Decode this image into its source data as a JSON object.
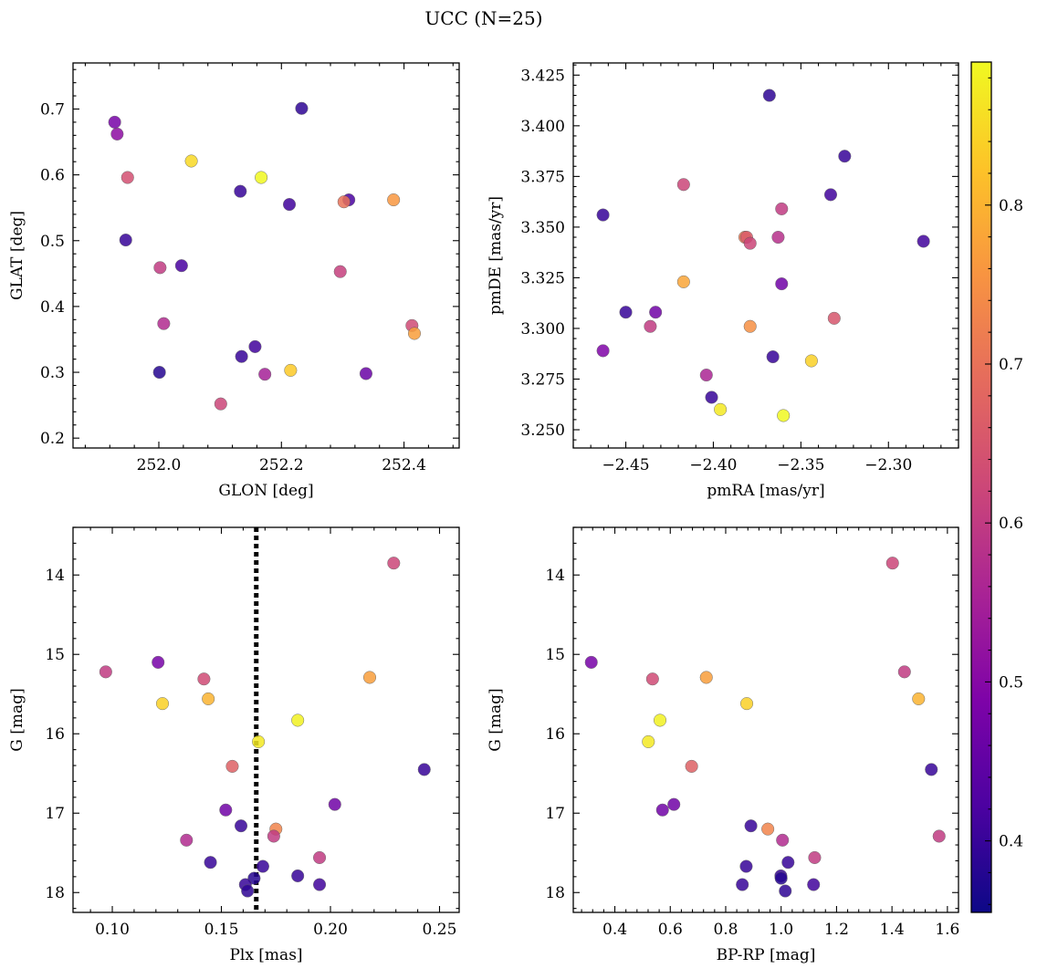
{
  "title": "UCC (N=25)",
  "colorbar": {
    "range": [
      0.355,
      0.89
    ],
    "ticks": [
      0.4,
      0.5,
      0.6,
      0.7,
      0.8
    ],
    "cmap": "plasma"
  },
  "chart_data": [
    {
      "id": "glon-glat",
      "type": "scatter",
      "xlabel": "GLON [deg]",
      "ylabel": "GLAT [deg]",
      "xlim": [
        251.86,
        252.49
      ],
      "ylim": [
        0.185,
        0.77
      ],
      "xticks": [
        252.0,
        252.2,
        252.4
      ],
      "xtick_labels": [
        "252.0",
        "252.2",
        "252.4"
      ],
      "yticks": [
        0.2,
        0.3,
        0.4,
        0.5,
        0.6,
        0.7
      ],
      "ytick_labels": [
        "0.2",
        "0.3",
        "0.4",
        "0.5",
        "0.6",
        "0.7"
      ],
      "y_inverted": false,
      "points": [
        {
          "x": 252.233,
          "y": 0.701,
          "c": 0.39
        },
        {
          "x": 251.928,
          "y": 0.68,
          "c": 0.48
        },
        {
          "x": 251.932,
          "y": 0.662,
          "c": 0.51
        },
        {
          "x": 252.053,
          "y": 0.621,
          "c": 0.85
        },
        {
          "x": 252.167,
          "y": 0.596,
          "c": 0.89
        },
        {
          "x": 251.949,
          "y": 0.596,
          "c": 0.64
        },
        {
          "x": 252.133,
          "y": 0.575,
          "c": 0.4
        },
        {
          "x": 252.31,
          "y": 0.562,
          "c": 0.42
        },
        {
          "x": 252.302,
          "y": 0.559,
          "c": 0.7
        },
        {
          "x": 252.383,
          "y": 0.562,
          "c": 0.76
        },
        {
          "x": 252.213,
          "y": 0.555,
          "c": 0.41
        },
        {
          "x": 251.946,
          "y": 0.501,
          "c": 0.4
        },
        {
          "x": 252.002,
          "y": 0.459,
          "c": 0.6
        },
        {
          "x": 252.037,
          "y": 0.462,
          "c": 0.42
        },
        {
          "x": 252.296,
          "y": 0.453,
          "c": 0.61
        },
        {
          "x": 252.008,
          "y": 0.374,
          "c": 0.57
        },
        {
          "x": 252.413,
          "y": 0.371,
          "c": 0.63
        },
        {
          "x": 252.417,
          "y": 0.359,
          "c": 0.77
        },
        {
          "x": 252.157,
          "y": 0.339,
          "c": 0.41
        },
        {
          "x": 252.135,
          "y": 0.324,
          "c": 0.4
        },
        {
          "x": 252.215,
          "y": 0.303,
          "c": 0.83
        },
        {
          "x": 252.001,
          "y": 0.3,
          "c": 0.38
        },
        {
          "x": 252.173,
          "y": 0.297,
          "c": 0.55
        },
        {
          "x": 252.338,
          "y": 0.298,
          "c": 0.46
        },
        {
          "x": 252.101,
          "y": 0.252,
          "c": 0.62
        }
      ]
    },
    {
      "id": "pmra-pmde",
      "type": "scatter",
      "xlabel": "pmRA [mas/yr]",
      "ylabel": "pmDE [mas/yr]",
      "xlim": [
        -2.48,
        -2.26
      ],
      "ylim": [
        3.241,
        3.431
      ],
      "xticks": [
        -2.45,
        -2.4,
        -2.35,
        -2.3
      ],
      "xtick_labels": [
        "−2.45",
        "−2.40",
        "−2.35",
        "−2.30"
      ],
      "yticks": [
        3.25,
        3.275,
        3.3,
        3.325,
        3.35,
        3.375,
        3.4,
        3.425
      ],
      "ytick_labels": [
        "3.250",
        "3.275",
        "3.300",
        "3.325",
        "3.350",
        "3.375",
        "3.400",
        "3.425"
      ],
      "y_inverted": false,
      "points": [
        {
          "x": -2.368,
          "y": 3.415,
          "c": 0.39
        },
        {
          "x": -2.325,
          "y": 3.385,
          "c": 0.4
        },
        {
          "x": -2.417,
          "y": 3.371,
          "c": 0.62
        },
        {
          "x": -2.333,
          "y": 3.366,
          "c": 0.41
        },
        {
          "x": -2.361,
          "y": 3.359,
          "c": 0.6
        },
        {
          "x": -2.463,
          "y": 3.356,
          "c": 0.4
        },
        {
          "x": -2.382,
          "y": 3.345,
          "c": 0.71
        },
        {
          "x": -2.381,
          "y": 3.345,
          "c": 0.66
        },
        {
          "x": -2.363,
          "y": 3.345,
          "c": 0.58
        },
        {
          "x": -2.379,
          "y": 3.342,
          "c": 0.62
        },
        {
          "x": -2.28,
          "y": 3.343,
          "c": 0.41
        },
        {
          "x": -2.417,
          "y": 3.323,
          "c": 0.78
        },
        {
          "x": -2.361,
          "y": 3.322,
          "c": 0.47
        },
        {
          "x": -2.45,
          "y": 3.308,
          "c": 0.4
        },
        {
          "x": -2.433,
          "y": 3.308,
          "c": 0.47
        },
        {
          "x": -2.331,
          "y": 3.305,
          "c": 0.65
        },
        {
          "x": -2.436,
          "y": 3.301,
          "c": 0.6
        },
        {
          "x": -2.379,
          "y": 3.301,
          "c": 0.75
        },
        {
          "x": -2.463,
          "y": 3.289,
          "c": 0.49
        },
        {
          "x": -2.366,
          "y": 3.286,
          "c": 0.4
        },
        {
          "x": -2.344,
          "y": 3.284,
          "c": 0.84
        },
        {
          "x": -2.404,
          "y": 3.277,
          "c": 0.56
        },
        {
          "x": -2.401,
          "y": 3.266,
          "c": 0.4
        },
        {
          "x": -2.396,
          "y": 3.26,
          "c": 0.87
        },
        {
          "x": -2.36,
          "y": 3.257,
          "c": 0.89
        }
      ]
    },
    {
      "id": "plx-g",
      "type": "scatter",
      "xlabel": "Plx [mas]",
      "ylabel": "G [mag]",
      "xlim": [
        0.082,
        0.259
      ],
      "ylim": [
        18.25,
        13.4
      ],
      "xticks": [
        0.1,
        0.15,
        0.2,
        0.25
      ],
      "xtick_labels": [
        "0.10",
        "0.15",
        "0.20",
        "0.25"
      ],
      "yticks": [
        14,
        15,
        16,
        17,
        18
      ],
      "ytick_labels": [
        "14",
        "15",
        "16",
        "17",
        "18"
      ],
      "y_inverted": true,
      "vline": 0.166,
      "points": [
        {
          "x": 0.229,
          "y": 13.85,
          "c": 0.62
        },
        {
          "x": 0.121,
          "y": 15.1,
          "c": 0.48
        },
        {
          "x": 0.097,
          "y": 15.22,
          "c": 0.6
        },
        {
          "x": 0.218,
          "y": 15.29,
          "c": 0.77
        },
        {
          "x": 0.142,
          "y": 15.31,
          "c": 0.63
        },
        {
          "x": 0.144,
          "y": 15.56,
          "c": 0.8
        },
        {
          "x": 0.123,
          "y": 15.62,
          "c": 0.84
        },
        {
          "x": 0.185,
          "y": 15.83,
          "c": 0.88
        },
        {
          "x": 0.167,
          "y": 16.1,
          "c": 0.87
        },
        {
          "x": 0.155,
          "y": 16.41,
          "c": 0.67
        },
        {
          "x": 0.243,
          "y": 16.45,
          "c": 0.4
        },
        {
          "x": 0.202,
          "y": 16.89,
          "c": 0.47
        },
        {
          "x": 0.152,
          "y": 16.96,
          "c": 0.47
        },
        {
          "x": 0.159,
          "y": 17.16,
          "c": 0.4
        },
        {
          "x": 0.175,
          "y": 17.2,
          "c": 0.73
        },
        {
          "x": 0.174,
          "y": 17.29,
          "c": 0.6
        },
        {
          "x": 0.134,
          "y": 17.34,
          "c": 0.57
        },
        {
          "x": 0.195,
          "y": 17.56,
          "c": 0.6
        },
        {
          "x": 0.145,
          "y": 17.62,
          "c": 0.4
        },
        {
          "x": 0.169,
          "y": 17.67,
          "c": 0.4
        },
        {
          "x": 0.185,
          "y": 17.79,
          "c": 0.4
        },
        {
          "x": 0.165,
          "y": 17.82,
          "c": 0.38
        },
        {
          "x": 0.161,
          "y": 17.9,
          "c": 0.4
        },
        {
          "x": 0.195,
          "y": 17.9,
          "c": 0.41
        },
        {
          "x": 0.162,
          "y": 17.98,
          "c": 0.39
        }
      ]
    },
    {
      "id": "bprp-g",
      "type": "scatter",
      "xlabel": "BP-RP [mag]",
      "ylabel": "G [mag]",
      "xlim": [
        0.25,
        1.64
      ],
      "ylim": [
        18.25,
        13.4
      ],
      "xticks": [
        0.4,
        0.6,
        0.8,
        1.0,
        1.2,
        1.4,
        1.6
      ],
      "xtick_labels": [
        "0.4",
        "0.6",
        "0.8",
        "1.0",
        "1.2",
        "1.4",
        "1.6"
      ],
      "yticks": [
        14,
        15,
        16,
        17,
        18
      ],
      "ytick_labels": [
        "14",
        "15",
        "16",
        "17",
        "18"
      ],
      "y_inverted": true,
      "points": [
        {
          "x": 1.402,
          "y": 13.85,
          "c": 0.62
        },
        {
          "x": 0.315,
          "y": 15.1,
          "c": 0.48
        },
        {
          "x": 1.445,
          "y": 15.22,
          "c": 0.6
        },
        {
          "x": 0.73,
          "y": 15.29,
          "c": 0.77
        },
        {
          "x": 0.536,
          "y": 15.31,
          "c": 0.63
        },
        {
          "x": 1.496,
          "y": 15.56,
          "c": 0.8
        },
        {
          "x": 0.876,
          "y": 15.62,
          "c": 0.84
        },
        {
          "x": 0.563,
          "y": 15.83,
          "c": 0.88
        },
        {
          "x": 0.521,
          "y": 16.1,
          "c": 0.87
        },
        {
          "x": 0.677,
          "y": 16.41,
          "c": 0.67
        },
        {
          "x": 1.542,
          "y": 16.45,
          "c": 0.4
        },
        {
          "x": 0.613,
          "y": 16.89,
          "c": 0.47
        },
        {
          "x": 0.572,
          "y": 16.96,
          "c": 0.47
        },
        {
          "x": 0.891,
          "y": 17.16,
          "c": 0.4
        },
        {
          "x": 0.952,
          "y": 17.2,
          "c": 0.73
        },
        {
          "x": 1.57,
          "y": 17.29,
          "c": 0.6
        },
        {
          "x": 1.005,
          "y": 17.34,
          "c": 0.57
        },
        {
          "x": 1.121,
          "y": 17.56,
          "c": 0.6
        },
        {
          "x": 1.025,
          "y": 17.62,
          "c": 0.4
        },
        {
          "x": 0.874,
          "y": 17.67,
          "c": 0.4
        },
        {
          "x": 0.999,
          "y": 17.79,
          "c": 0.4
        },
        {
          "x": 1.0,
          "y": 17.82,
          "c": 0.38
        },
        {
          "x": 0.86,
          "y": 17.9,
          "c": 0.4
        },
        {
          "x": 1.117,
          "y": 17.9,
          "c": 0.41
        },
        {
          "x": 1.015,
          "y": 17.98,
          "c": 0.39
        }
      ]
    }
  ]
}
